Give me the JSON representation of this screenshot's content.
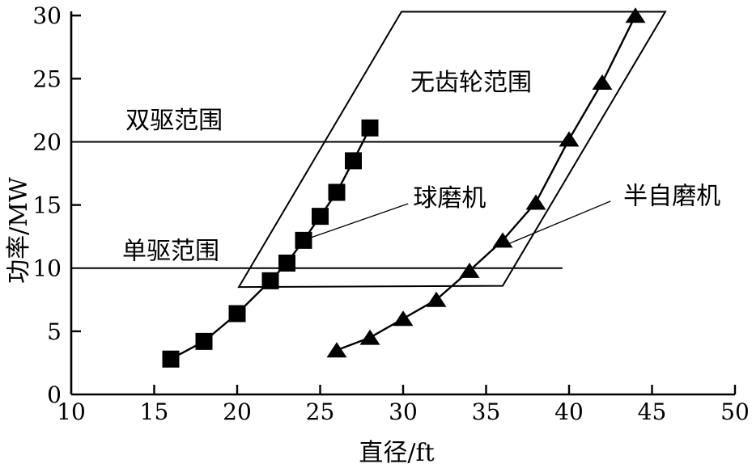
{
  "figure": {
    "background": "#ffffff",
    "foreground": "#000000"
  },
  "chart_data": {
    "type": "line",
    "title": "",
    "xlabel": "直径/ft",
    "ylabel": "功率/MW",
    "xlim": [
      10,
      50
    ],
    "ylim": [
      0,
      30
    ],
    "xticks": [
      10,
      15,
      20,
      25,
      30,
      35,
      40,
      45,
      50
    ],
    "yticks": [
      0,
      5,
      10,
      15,
      20,
      25,
      30
    ],
    "grid": false,
    "legend": "none",
    "series": [
      {
        "key": "ball-mill",
        "name": "球磨机",
        "marker": "square",
        "x": [
          16,
          18,
          20,
          22,
          23,
          24,
          25,
          26,
          27,
          28
        ],
        "y": [
          2.8,
          4.2,
          6.4,
          9.0,
          10.4,
          12.2,
          14.1,
          16.0,
          18.5,
          21.1
        ]
      },
      {
        "key": "sag-mill",
        "name": "半自磨机",
        "marker": "triangle",
        "x": [
          26,
          28,
          30,
          32,
          34,
          36,
          38,
          40,
          42,
          44
        ],
        "y": [
          3.5,
          4.5,
          6.0,
          7.5,
          9.8,
          12.2,
          15.2,
          20.2,
          24.7,
          30.0
        ]
      }
    ],
    "regions": [
      {
        "key": "gearless-range",
        "label": "无齿轮范围",
        "polygon": [
          [
            20.1,
            8.5
          ],
          [
            29.9,
            30.3
          ],
          [
            45.8,
            30.3
          ],
          [
            36.0,
            8.6
          ]
        ],
        "label_at": [
          34.1,
          24.7
        ]
      }
    ],
    "hlines": [
      {
        "key": "dual-drive-range",
        "label": "双驱范围",
        "y": 20,
        "x_start": 10,
        "x_end": 39.9,
        "label_at": [
          16.2,
          21.7
        ]
      },
      {
        "key": "single-drive-range",
        "label": "单驱范围",
        "y": 10,
        "x_start": 10,
        "x_end": 39.6,
        "label_at": [
          16.0,
          11.35
        ]
      }
    ],
    "annotations": [
      {
        "key": "ball-mill-label",
        "text": "球磨机",
        "at": [
          32.8,
          15.55
        ],
        "leader": [
          [
            30.3,
            15.1
          ],
          [
            24.4,
            12.4
          ]
        ]
      },
      {
        "key": "sag-mill-label",
        "text": "半自磨机",
        "at": [
          46.2,
          15.7
        ],
        "leader": [
          [
            42.5,
            15.3
          ],
          [
            36.3,
            11.9
          ]
        ]
      }
    ]
  }
}
